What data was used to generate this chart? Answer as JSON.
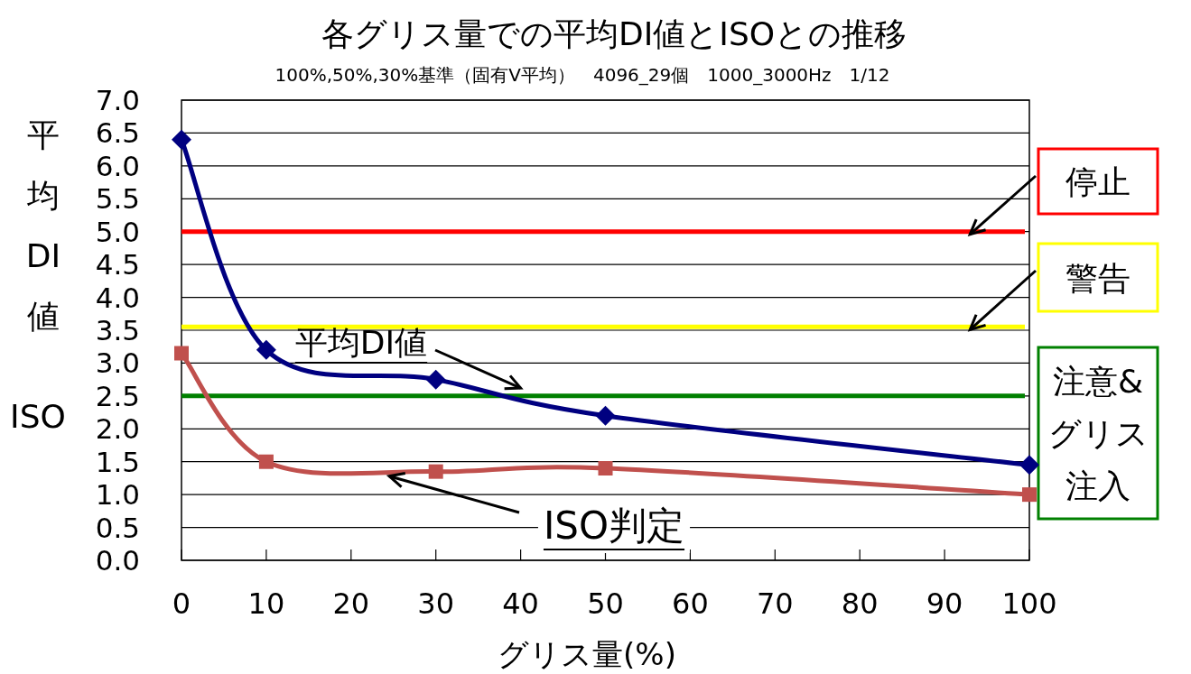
{
  "chart_data": {
    "type": "line",
    "title": "各グリス量での平均DI値とISOとの推移",
    "subtitle": "100%,50%,30%基準（固有V平均）　4096_29個　1000_3000Hz　1/12",
    "xlabel": "グリス量(%)",
    "ylabel": "平均DI値 ISO",
    "x": [
      0,
      10,
      30,
      50,
      100
    ],
    "series": [
      {
        "name": "平均DI値",
        "color": "#000080",
        "marker": "diamond",
        "values": [
          6.4,
          3.2,
          2.75,
          2.2,
          1.45
        ]
      },
      {
        "name": "ISO判定",
        "color": "#c0504d",
        "marker": "square",
        "values": [
          3.15,
          1.5,
          1.35,
          1.4,
          1.0
        ]
      }
    ],
    "xlim": [
      0,
      100
    ],
    "xticks": [
      0,
      10,
      20,
      30,
      40,
      50,
      60,
      70,
      80,
      90,
      100
    ],
    "ylim": [
      0,
      7
    ],
    "yticks": [
      {
        "value": 0,
        "label": "0.0"
      },
      {
        "value": 0.5,
        "label": "0.5"
      },
      {
        "value": 1,
        "label": "1.0"
      },
      {
        "value": 1.5,
        "label": "1.5"
      },
      {
        "value": 2,
        "label": "2.0"
      },
      {
        "value": 2.5,
        "label": "2.5"
      },
      {
        "value": 3,
        "label": "3.0"
      },
      {
        "value": 3.5,
        "label": "3.5"
      },
      {
        "value": 4,
        "label": "4.0"
      },
      {
        "value": 4.5,
        "label": "4.5"
      },
      {
        "value": 5,
        "label": "5.0"
      },
      {
        "value": 5.5,
        "label": "5.5"
      },
      {
        "value": 6,
        "label": "6.0"
      },
      {
        "value": 6.5,
        "label": "6.5"
      },
      {
        "value": 7,
        "label": "7.0"
      }
    ],
    "grid": "y",
    "ref_lines": [
      {
        "axis": "y",
        "value": 5.0,
        "label": "停止",
        "color": "#ff0000"
      },
      {
        "axis": "y",
        "value": 3.55,
        "label": "警告",
        "color": "#ffff00"
      },
      {
        "axis": "y",
        "value": 2.5,
        "label": "注意&グリス注入",
        "color": "#008000"
      }
    ]
  }
}
